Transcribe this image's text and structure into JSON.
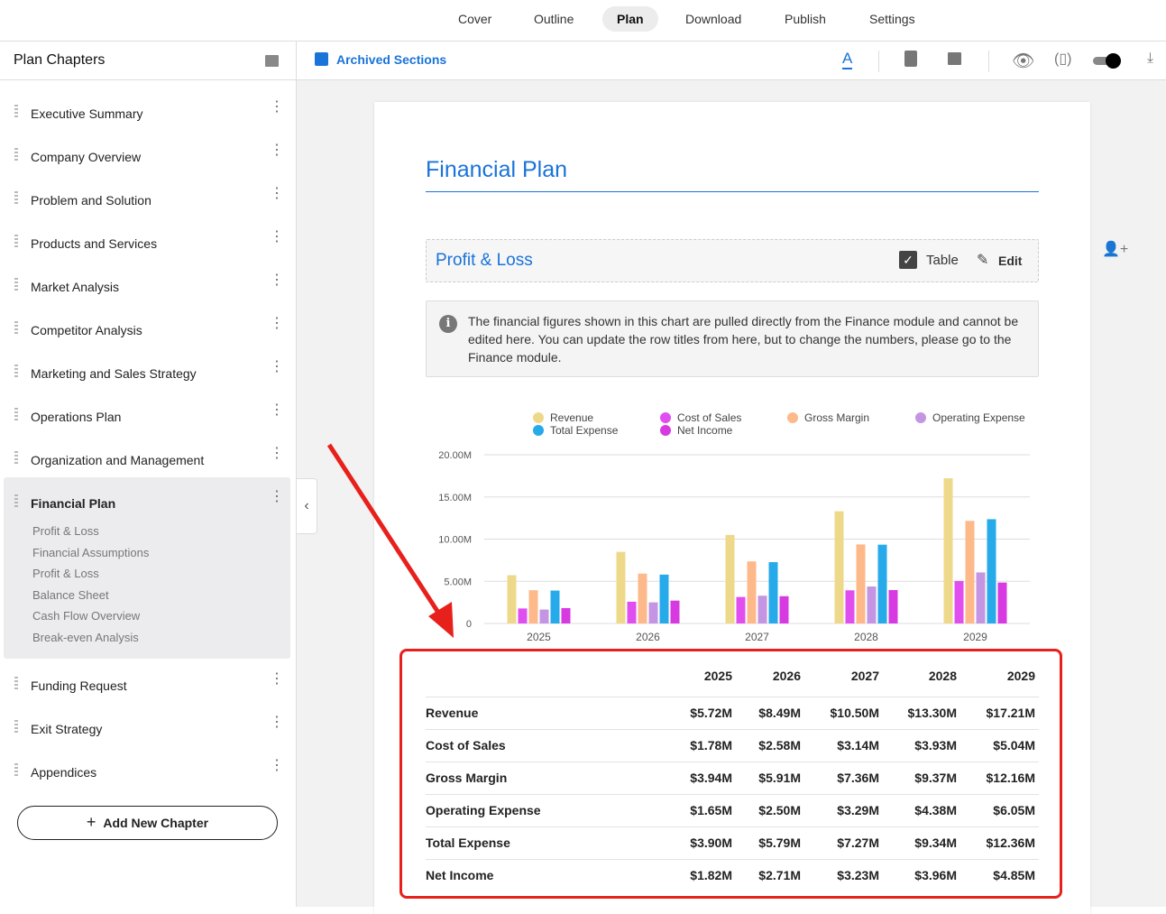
{
  "topnav": {
    "tabs": [
      "Cover",
      "Outline",
      "Plan",
      "Download",
      "Publish",
      "Settings"
    ],
    "active": "Plan"
  },
  "sidebar": {
    "title": "Plan Chapters",
    "chapters": [
      "Executive Summary",
      "Company Overview",
      "Problem and Solution",
      "Products and Services",
      "Market Analysis",
      "Competitor Analysis",
      "Marketing and Sales Strategy",
      "Operations Plan",
      "Organization and Management",
      "Financial Plan",
      "Funding Request",
      "Exit Strategy",
      "Appendices"
    ],
    "active": "Financial Plan",
    "subsections": [
      "Profit & Loss",
      "Financial Assumptions",
      "Profit & Loss",
      "Balance Sheet",
      "Cash Flow Overview",
      "Break-even Analysis"
    ],
    "add_label": "Add New Chapter"
  },
  "toolbar": {
    "archived": "Archived Sections",
    "toggle_on": true
  },
  "page": {
    "title": "Financial Plan",
    "section_title": "Profit & Loss",
    "table_label": "Table",
    "table_checked": true,
    "edit_label": "Edit",
    "info": "The financial figures shown in this chart are pulled directly from the Finance module and cannot be edited here. You can update the row titles from here, but to change the numbers, please go to the Finance module."
  },
  "chart_data": {
    "type": "bar",
    "categories": [
      "2025",
      "2026",
      "2027",
      "2028",
      "2029"
    ],
    "ylim": [
      0,
      20000000
    ],
    "yticks": [
      "0",
      "5.00M",
      "10.00M",
      "15.00M",
      "20.00M"
    ],
    "grid": true,
    "legend": "top",
    "series": [
      {
        "name": "Revenue",
        "color": "#eed98a",
        "values": [
          5.72,
          8.49,
          10.5,
          13.3,
          17.21
        ]
      },
      {
        "name": "Cost of Sales",
        "color": "#e14ef0",
        "values": [
          1.78,
          2.58,
          3.14,
          3.93,
          5.04
        ]
      },
      {
        "name": "Gross Margin",
        "color": "#fdb98a",
        "values": [
          3.94,
          5.91,
          7.36,
          9.37,
          12.16
        ]
      },
      {
        "name": "Operating Expense",
        "color": "#c495e3",
        "values": [
          1.65,
          2.5,
          3.29,
          4.38,
          6.05
        ]
      },
      {
        "name": "Total Expense",
        "color": "#27aaea",
        "values": [
          3.9,
          5.79,
          7.27,
          9.34,
          12.36
        ]
      },
      {
        "name": "Net Income",
        "color": "#d63ae0",
        "values": [
          1.82,
          2.71,
          3.23,
          3.96,
          4.85
        ]
      }
    ]
  },
  "table": {
    "years": [
      "2025",
      "2026",
      "2027",
      "2028",
      "2029"
    ],
    "rows": [
      {
        "label": "Revenue",
        "values": [
          "$5.72M",
          "$8.49M",
          "$10.50M",
          "$13.30M",
          "$17.21M"
        ]
      },
      {
        "label": "Cost of Sales",
        "values": [
          "$1.78M",
          "$2.58M",
          "$3.14M",
          "$3.93M",
          "$5.04M"
        ]
      },
      {
        "label": "Gross Margin",
        "values": [
          "$3.94M",
          "$5.91M",
          "$7.36M",
          "$9.37M",
          "$12.16M"
        ]
      },
      {
        "label": "Operating Expense",
        "values": [
          "$1.65M",
          "$2.50M",
          "$3.29M",
          "$4.38M",
          "$6.05M"
        ]
      },
      {
        "label": "Total Expense",
        "values": [
          "$3.90M",
          "$5.79M",
          "$7.27M",
          "$9.34M",
          "$12.36M"
        ]
      },
      {
        "label": "Net Income",
        "values": [
          "$1.82M",
          "$2.71M",
          "$3.23M",
          "$3.96M",
          "$4.85M"
        ]
      }
    ]
  },
  "colors": {
    "accent": "#1a73d9",
    "annotation": "#e8201c"
  }
}
